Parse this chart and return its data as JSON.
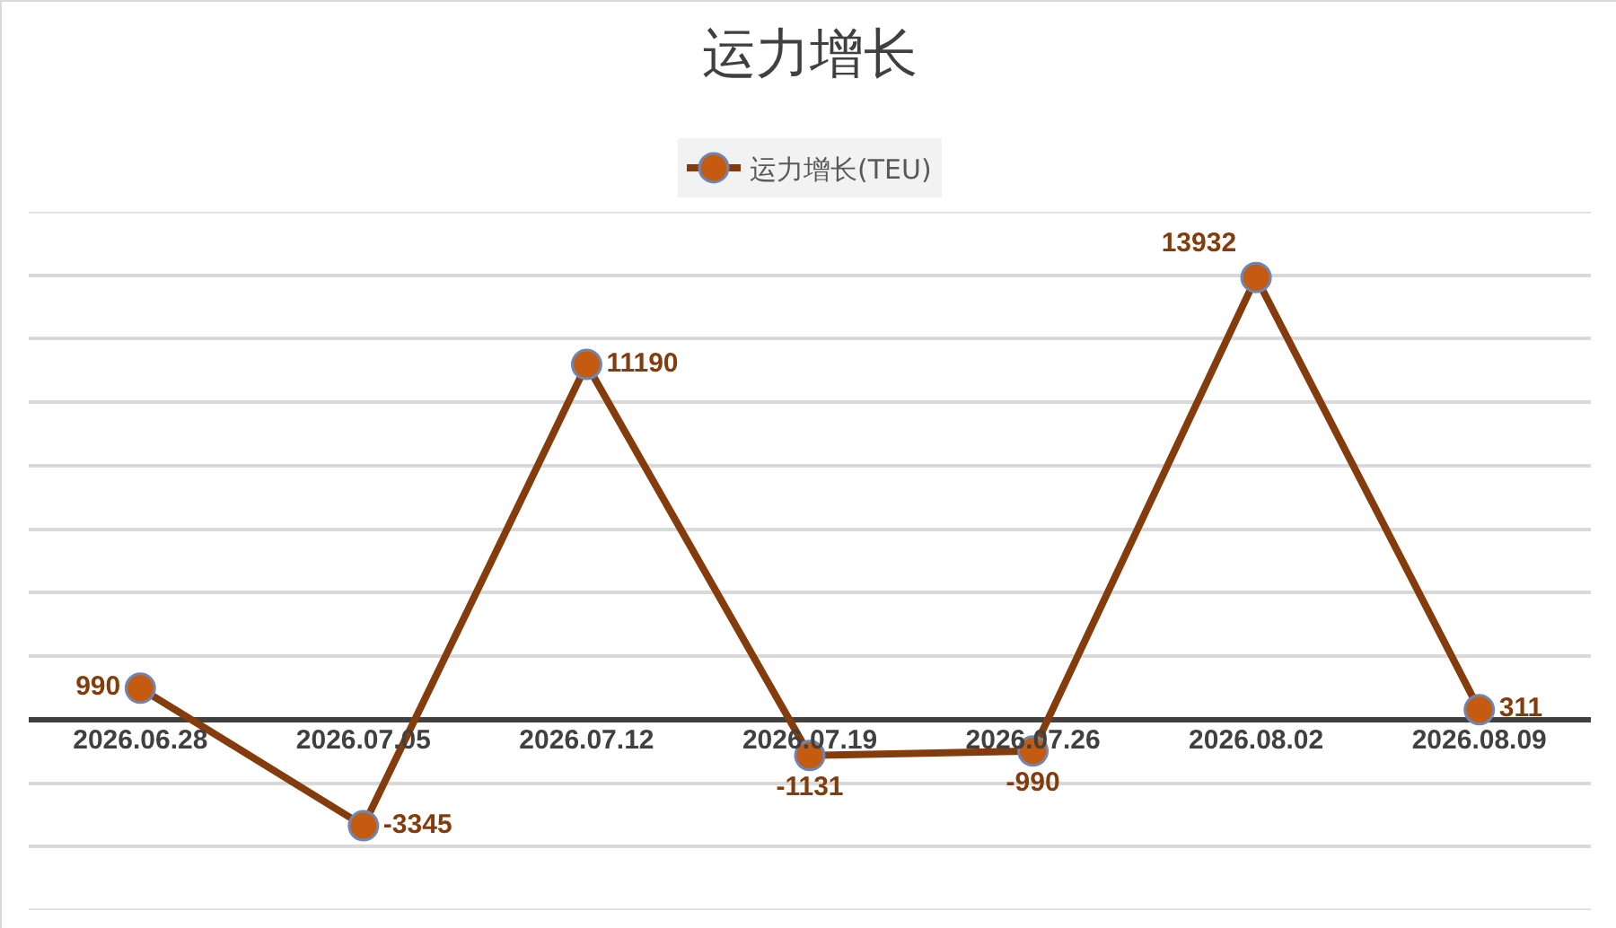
{
  "chart_data": {
    "type": "line",
    "title": "运力增长",
    "categories": [
      "2026.06.28",
      "2026.07.05",
      "2026.07.12",
      "2026.07.19",
      "2026.07.26",
      "2026.08.02",
      "2026.08.09"
    ],
    "series": [
      {
        "name": "运力增长(TEU)",
        "color": "#843c0c",
        "values": [
          990,
          -3345,
          11190,
          -1131,
          -990,
          13932,
          311
        ]
      }
    ],
    "ylim": [
      -6000,
      16000
    ],
    "yticks": [
      {
        "value": -4000,
        "label": null
      },
      {
        "value": -2000,
        "label": null
      },
      {
        "value": 0,
        "label": null
      },
      {
        "value": 2000,
        "label": null
      },
      {
        "value": 4000,
        "label": null
      },
      {
        "value": 6000,
        "label": null
      },
      {
        "value": 8000,
        "label": null
      },
      {
        "value": 10000,
        "label": null
      },
      {
        "value": 12000,
        "label": null
      },
      {
        "value": 14000,
        "label": null
      }
    ],
    "tick_labels": "x",
    "grid": "y",
    "legend": "top",
    "marker": "circle",
    "line_style": "solid",
    "data_labels": true
  }
}
